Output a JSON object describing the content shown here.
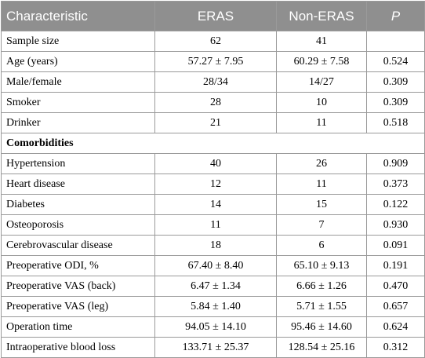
{
  "table": {
    "headers": [
      "Characteristic",
      "ERAS",
      "Non-ERAS",
      "P"
    ],
    "rows_before_section": [
      [
        "Sample size",
        "62",
        "41",
        ""
      ],
      [
        "Age (years)",
        "57.27 ± 7.95",
        "60.29 ± 7.58",
        "0.524"
      ],
      [
        "Male/female",
        "28/34",
        "14/27",
        "0.309"
      ],
      [
        "Smoker",
        "28",
        "10",
        "0.309"
      ],
      [
        "Drinker",
        "21",
        "11",
        "0.518"
      ]
    ],
    "section_label": "Comorbidities",
    "rows_after_section": [
      [
        "Hypertension",
        "40",
        "26",
        "0.909"
      ],
      [
        "Heart disease",
        "12",
        "11",
        "0.373"
      ],
      [
        "Diabetes",
        "14",
        "15",
        "0.122"
      ],
      [
        "Osteoporosis",
        "11",
        "7",
        "0.930"
      ],
      [
        "Cerebrovascular disease",
        "18",
        "6",
        "0.091"
      ],
      [
        "Preoperative ODI, %",
        "67.40 ± 8.40",
        "65.10 ± 9.13",
        "0.191"
      ],
      [
        "Preoperative VAS (back)",
        "6.47 ± 1.34",
        "6.66 ± 1.26",
        "0.470"
      ],
      [
        "Preoperative VAS (leg)",
        "5.84 ± 1.40",
        "5.71 ± 1.55",
        "0.657"
      ],
      [
        "Operation time",
        "94.05 ± 14.10",
        "95.46 ± 14.60",
        "0.624"
      ],
      [
        "Intraoperative blood loss",
        "133.71 ± 25.37",
        "128.54 ± 25.16",
        "0.312"
      ]
    ]
  }
}
